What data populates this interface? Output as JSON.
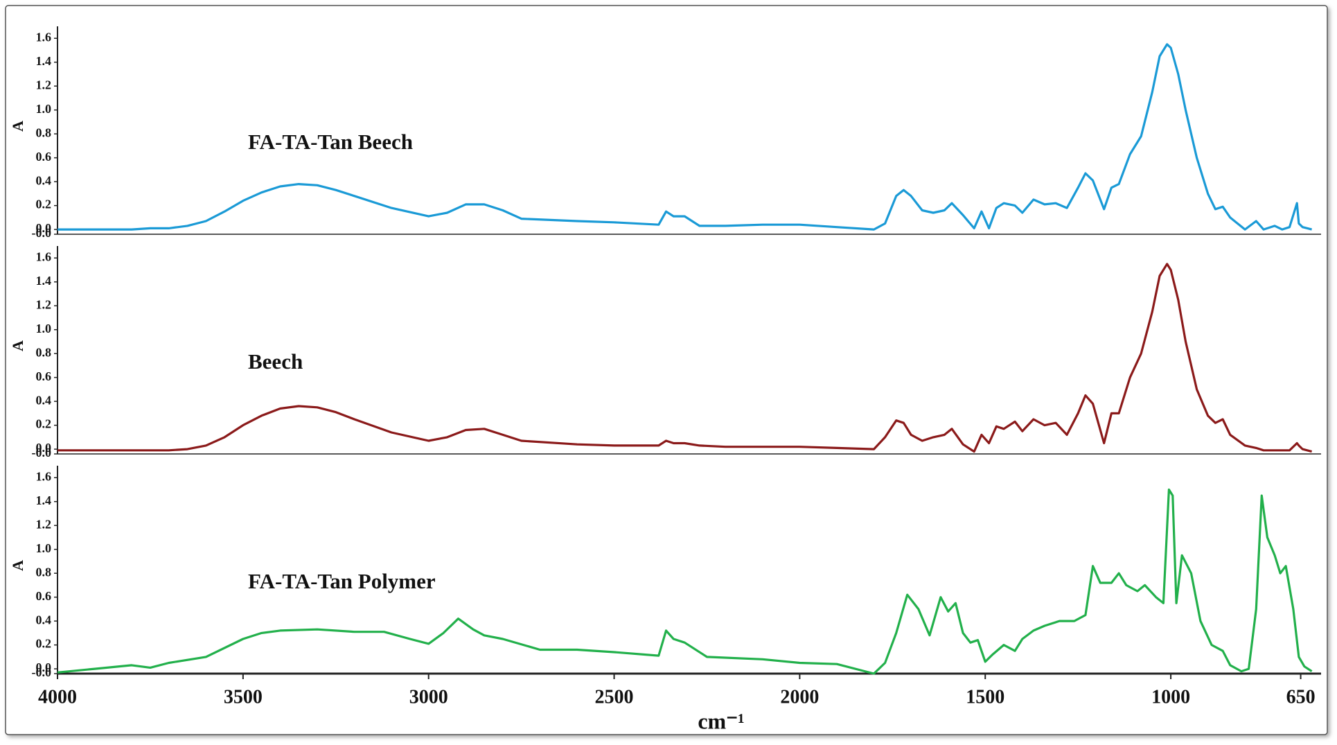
{
  "chart_data": [
    {
      "type": "line",
      "annotation": "FA-TA-Tan Beech",
      "ylabel": "A",
      "xlim": [
        4000,
        610
      ],
      "ylim": [
        -0.04,
        1.7
      ],
      "yticks": [
        {
          "value": -0.04,
          "label": "-0.0"
        },
        {
          "value": 0,
          "label": "0.0"
        },
        0.2,
        0.4,
        0.6,
        0.8,
        {
          "value": 1,
          "label": "1.0"
        },
        1.2,
        1.4,
        1.6
      ],
      "x": [
        4000,
        3900,
        3800,
        3750,
        3700,
        3650,
        3600,
        3550,
        3500,
        3450,
        3400,
        3350,
        3300,
        3250,
        3200,
        3100,
        3000,
        2950,
        2900,
        2850,
        2800,
        2750,
        2600,
        2500,
        2380,
        2360,
        2340,
        2310,
        2270,
        2200,
        2100,
        2000,
        1900,
        1800,
        1770,
        1740,
        1720,
        1700,
        1670,
        1640,
        1610,
        1590,
        1560,
        1530,
        1510,
        1490,
        1470,
        1450,
        1420,
        1400,
        1370,
        1340,
        1310,
        1280,
        1250,
        1230,
        1210,
        1180,
        1160,
        1140,
        1110,
        1080,
        1050,
        1030,
        1010,
        1000,
        980,
        960,
        930,
        900,
        880,
        860,
        840,
        800,
        770,
        750,
        720,
        700,
        680,
        660,
        655,
        645,
        620
      ],
      "series": [
        {
          "color": "#1a9ad6",
          "values": [
            0.0,
            0.0,
            0.0,
            0.01,
            0.01,
            0.03,
            0.07,
            0.15,
            0.24,
            0.31,
            0.36,
            0.38,
            0.37,
            0.33,
            0.28,
            0.18,
            0.11,
            0.14,
            0.21,
            0.21,
            0.16,
            0.09,
            0.07,
            0.06,
            0.04,
            0.15,
            0.11,
            0.11,
            0.03,
            0.03,
            0.04,
            0.04,
            0.02,
            0.0,
            0.05,
            0.28,
            0.33,
            0.28,
            0.16,
            0.14,
            0.16,
            0.22,
            0.12,
            0.01,
            0.15,
            0.01,
            0.18,
            0.22,
            0.2,
            0.14,
            0.25,
            0.21,
            0.22,
            0.18,
            0.35,
            0.47,
            0.41,
            0.17,
            0.35,
            0.38,
            0.63,
            0.78,
            1.15,
            1.45,
            1.55,
            1.52,
            1.3,
            1.0,
            0.6,
            0.3,
            0.17,
            0.19,
            0.1,
            0.0,
            0.07,
            0.0,
            0.03,
            0.0,
            0.02,
            0.22,
            0.05,
            0.02,
            0.0
          ]
        }
      ]
    },
    {
      "type": "line",
      "annotation": "Beech",
      "ylabel": "A",
      "xlim": [
        4000,
        610
      ],
      "ylim": [
        -0.04,
        1.7
      ],
      "yticks": [
        {
          "value": -0.04,
          "label": "-0.0"
        },
        {
          "value": 0,
          "label": "0.0"
        },
        0.2,
        0.4,
        0.6,
        0.8,
        {
          "value": 1,
          "label": "1.0"
        },
        1.2,
        1.4,
        1.6
      ],
      "x": [
        4000,
        3900,
        3800,
        3750,
        3700,
        3650,
        3600,
        3550,
        3500,
        3450,
        3400,
        3350,
        3300,
        3250,
        3200,
        3100,
        3000,
        2950,
        2900,
        2850,
        2800,
        2750,
        2600,
        2500,
        2380,
        2360,
        2340,
        2310,
        2270,
        2200,
        2100,
        2000,
        1900,
        1800,
        1770,
        1740,
        1720,
        1700,
        1670,
        1640,
        1610,
        1590,
        1560,
        1530,
        1510,
        1490,
        1470,
        1450,
        1420,
        1400,
        1370,
        1340,
        1310,
        1280,
        1250,
        1230,
        1210,
        1180,
        1160,
        1140,
        1110,
        1080,
        1050,
        1030,
        1010,
        1000,
        980,
        960,
        930,
        900,
        880,
        860,
        840,
        800,
        770,
        750,
        720,
        700,
        680,
        660,
        655,
        645,
        620
      ],
      "series": [
        {
          "color": "#8b1a1a",
          "values": [
            -0.01,
            -0.01,
            -0.01,
            -0.01,
            -0.01,
            0.0,
            0.03,
            0.1,
            0.2,
            0.28,
            0.34,
            0.36,
            0.35,
            0.31,
            0.25,
            0.14,
            0.07,
            0.1,
            0.16,
            0.17,
            0.12,
            0.07,
            0.04,
            0.03,
            0.03,
            0.07,
            0.05,
            0.05,
            0.03,
            0.02,
            0.02,
            0.02,
            0.01,
            0.0,
            0.1,
            0.24,
            0.22,
            0.12,
            0.07,
            0.1,
            0.12,
            0.17,
            0.04,
            -0.02,
            0.12,
            0.05,
            0.19,
            0.17,
            0.23,
            0.15,
            0.25,
            0.2,
            0.22,
            0.12,
            0.3,
            0.45,
            0.38,
            0.05,
            0.3,
            0.3,
            0.6,
            0.8,
            1.15,
            1.45,
            1.55,
            1.5,
            1.25,
            0.9,
            0.5,
            0.28,
            0.22,
            0.25,
            0.12,
            0.03,
            0.01,
            -0.01,
            -0.01,
            -0.01,
            -0.01,
            0.05,
            0.03,
            0.0,
            -0.02
          ]
        }
      ]
    },
    {
      "type": "line",
      "annotation": "FA-TA-Tan Polymer",
      "ylabel": "A",
      "xlabel": "cm⁻¹",
      "xlim": [
        4000,
        610
      ],
      "ylim": [
        -0.04,
        1.7
      ],
      "xticks": [
        4000,
        3500,
        3000,
        2500,
        2000,
        1500,
        1000,
        650
      ],
      "yticks": [
        {
          "value": -0.04,
          "label": "-0.0"
        },
        {
          "value": 0,
          "label": "0.0"
        },
        0.2,
        0.4,
        0.6,
        0.8,
        {
          "value": 1,
          "label": "1.0"
        },
        1.2,
        1.4,
        1.6
      ],
      "x": [
        4000,
        3900,
        3800,
        3750,
        3700,
        3600,
        3500,
        3450,
        3400,
        3300,
        3200,
        3120,
        3050,
        3000,
        2960,
        2920,
        2880,
        2850,
        2800,
        2700,
        2600,
        2500,
        2380,
        2360,
        2340,
        2310,
        2250,
        2100,
        2000,
        1900,
        1800,
        1770,
        1740,
        1710,
        1680,
        1650,
        1620,
        1600,
        1580,
        1560,
        1540,
        1520,
        1500,
        1480,
        1450,
        1420,
        1400,
        1370,
        1340,
        1300,
        1260,
        1230,
        1210,
        1190,
        1160,
        1140,
        1120,
        1090,
        1070,
        1040,
        1020,
        1005,
        995,
        985,
        970,
        945,
        920,
        890,
        860,
        840,
        810,
        790,
        770,
        755,
        740,
        720,
        705,
        690,
        670,
        655,
        640,
        620
      ],
      "series": [
        {
          "color": "#22b04b",
          "values": [
            -0.03,
            0.0,
            0.03,
            0.01,
            0.05,
            0.1,
            0.25,
            0.3,
            0.32,
            0.33,
            0.31,
            0.31,
            0.25,
            0.21,
            0.3,
            0.42,
            0.33,
            0.28,
            0.25,
            0.16,
            0.16,
            0.14,
            0.11,
            0.32,
            0.25,
            0.22,
            0.1,
            0.08,
            0.05,
            0.04,
            -0.04,
            0.05,
            0.3,
            0.62,
            0.5,
            0.28,
            0.6,
            0.48,
            0.55,
            0.3,
            0.22,
            0.24,
            0.06,
            0.12,
            0.2,
            0.15,
            0.25,
            0.32,
            0.36,
            0.4,
            0.4,
            0.45,
            0.86,
            0.72,
            0.72,
            0.8,
            0.7,
            0.65,
            0.7,
            0.6,
            0.55,
            1.5,
            1.45,
            0.55,
            0.95,
            0.8,
            0.4,
            0.2,
            0.15,
            0.03,
            -0.02,
            0.0,
            0.5,
            1.45,
            1.1,
            0.95,
            0.8,
            0.86,
            0.5,
            0.1,
            0.02,
            -0.02
          ]
        }
      ]
    }
  ]
}
